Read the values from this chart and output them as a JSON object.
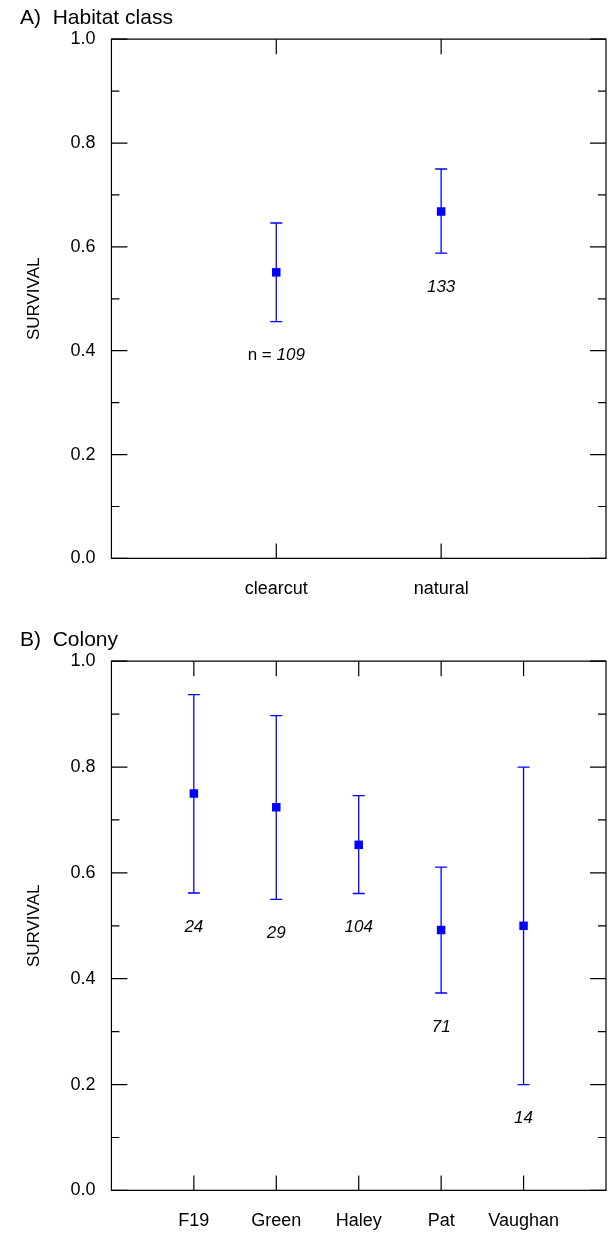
{
  "chart_data": [
    {
      "type": "scatter",
      "title": "A)  Habitat class",
      "ylabel": "SURVIVAL",
      "categories": [
        "clearcut",
        "natural"
      ],
      "values": [
        0.551,
        0.668
      ],
      "errors": [
        [
          0.456,
          0.646
        ],
        [
          0.588,
          0.75
        ]
      ],
      "color": "#0000ff",
      "marker": "square",
      "ylim": [
        0,
        1
      ],
      "yticks": [
        {
          "value": 0,
          "label": "0.0"
        },
        {
          "value": 0.1,
          "label": null
        },
        0.2,
        {
          "value": 0.3,
          "label": null
        },
        0.4,
        {
          "value": 0.5,
          "label": null
        },
        0.6,
        {
          "value": 0.7,
          "label": null
        },
        0.8,
        {
          "value": 0.9,
          "label": null
        },
        {
          "value": 1,
          "label": "1.0"
        }
      ],
      "annotations": [
        "n = 109",
        "133"
      ],
      "grid": false,
      "legend": false
    },
    {
      "type": "scatter",
      "title": "B)  Colony",
      "ylabel": "SURVIVAL",
      "categories": [
        "F19",
        "Green",
        "Haley",
        "Pat",
        "Vaughan"
      ],
      "values": [
        0.75,
        0.724,
        0.653,
        0.492,
        0.5
      ],
      "errors": [
        [
          0.562,
          0.937
        ],
        [
          0.55,
          0.897
        ],
        [
          0.561,
          0.746
        ],
        [
          0.373,
          0.611
        ],
        [
          0.2,
          0.8
        ]
      ],
      "color": "#0000ff",
      "marker": "square",
      "ylim": [
        0,
        1
      ],
      "yticks": [
        {
          "value": 0,
          "label": "0.0"
        },
        {
          "value": 0.1,
          "label": null
        },
        0.2,
        {
          "value": 0.3,
          "label": null
        },
        0.4,
        {
          "value": 0.5,
          "label": null
        },
        0.6,
        {
          "value": 0.7,
          "label": null
        },
        0.8,
        {
          "value": 0.9,
          "label": null
        },
        {
          "value": 1,
          "label": "1.0"
        }
      ],
      "annotations": [
        "24",
        "29",
        "104",
        "71",
        "14"
      ],
      "grid": false,
      "legend": false
    }
  ]
}
